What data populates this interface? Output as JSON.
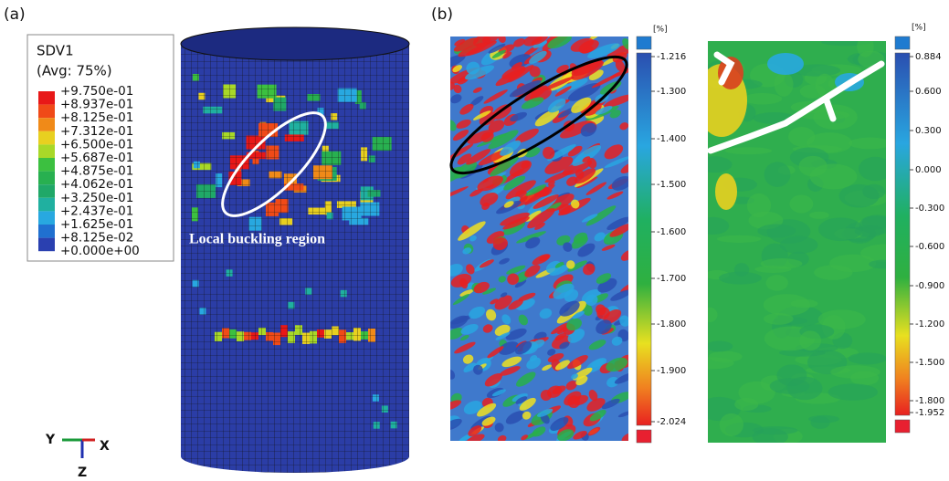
{
  "panel_a": {
    "label": "(a)",
    "legend": {
      "title": "SDV1",
      "subtitle": "(Avg: 75%)",
      "labels": [
        "+9.750e-01",
        "+8.937e-01",
        "+8.125e-01",
        "+7.312e-01",
        "+6.500e-01",
        "+5.687e-01",
        "+4.875e-01",
        "+4.062e-01",
        "+3.250e-01",
        "+2.437e-01",
        "+1.625e-01",
        "+8.125e-02",
        "+0.000e+00"
      ]
    },
    "annotation": "Local buckling region",
    "axes": {
      "y": "Y",
      "x": "X",
      "z": "Z"
    }
  },
  "panel_b": {
    "label": "(b)",
    "colorbars": [
      {
        "unit": "[%]",
        "labels": [
          "-1.216",
          "-1.300",
          "-1.400",
          "-1.500",
          "-1.600",
          "-1.700",
          "-1.800",
          "-1.900",
          "-2.024"
        ]
      },
      {
        "unit": "[%]",
        "labels": [
          "0.884",
          "0.600",
          "0.300",
          "0.000",
          "-0.300",
          "-0.600",
          "-0.900",
          "-1.200",
          "-1.500",
          "-1.800",
          "-1.952"
        ]
      }
    ]
  }
}
